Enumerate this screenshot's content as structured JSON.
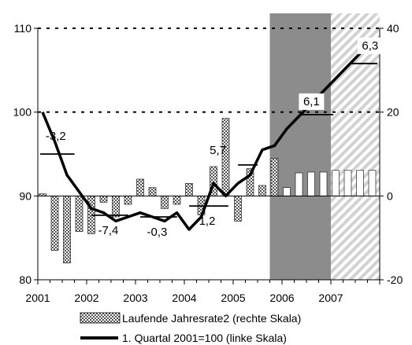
{
  "chart_data": {
    "type": "bar+line",
    "left_axis": {
      "ylim": [
        80,
        110
      ],
      "ticks": [
        "80",
        "90",
        "100",
        "110"
      ]
    },
    "right_axis": {
      "ylim": [
        -20,
        40
      ],
      "ticks": [
        "-20",
        "0",
        "20",
        "40"
      ]
    },
    "x_axis": {
      "xlim": [
        2001.0,
        2008.0
      ],
      "ticks": [
        "2001",
        "2002",
        "2003",
        "2004",
        "2005",
        "2006",
        "2007"
      ]
    },
    "grid": "dashed horizontal at 100 and 110",
    "shaded_regions": [
      {
        "from": 2005.75,
        "to": 2007.0,
        "style": "solid",
        "color": "#8c8c8c"
      },
      {
        "from": 2007.0,
        "to": 2008.0,
        "style": "hatched",
        "color": "#bdbdbd"
      }
    ],
    "bars": {
      "name": "Laufende Jahresrate2 (rechte Skala)",
      "axis": "right",
      "x": [
        2001.0,
        2001.25,
        2001.5,
        2001.75,
        2002.0,
        2002.25,
        2002.5,
        2002.75,
        2003.0,
        2003.25,
        2003.5,
        2003.75,
        2004.0,
        2004.25,
        2004.5,
        2004.75,
        2005.0,
        2005.25,
        2005.5,
        2005.75,
        2006.0,
        2006.25,
        2006.5,
        2006.75,
        2007.0,
        2007.25,
        2007.5,
        2007.75
      ],
      "values": [
        0.5,
        -13,
        -16,
        -8.5,
        -9,
        -1.5,
        -5,
        -2,
        4,
        2,
        -3,
        -2,
        3,
        -4.5,
        7,
        18.5,
        -6,
        6.5,
        2.5,
        9,
        2,
        5.5,
        5.7,
        5.7,
        6.1,
        6.1,
        6.1,
        6.1
      ],
      "forecast_from_index": 20
    },
    "line": {
      "name": "1. Quartal 2001=100 (linke Skala)",
      "axis": "left",
      "x": [
        2001.0,
        2001.25,
        2001.5,
        2001.75,
        2002.0,
        2002.25,
        2002.5,
        2002.75,
        2003.0,
        2003.25,
        2003.5,
        2003.75,
        2004.0,
        2004.25,
        2004.5,
        2004.75,
        2005.0,
        2005.25,
        2005.5,
        2005.75,
        2006.0,
        2006.25,
        2006.5,
        2006.75,
        2007.0,
        2007.25,
        2007.5,
        2007.75
      ],
      "values": [
        100,
        96.5,
        92.5,
        90.5,
        88.5,
        88,
        87,
        87.5,
        88,
        87.5,
        87,
        88,
        86,
        87.5,
        91.5,
        90,
        91.5,
        92.5,
        95.5,
        96,
        98,
        99.5,
        101,
        102.5,
        104,
        105.5,
        107,
        108.5
      ]
    },
    "annual_averages": [
      {
        "year": 2001,
        "x_from": 2001.0,
        "x_to": 2001.8,
        "value": 95,
        "label": "-3,2"
      },
      {
        "year": 2002,
        "x_from": 2002.05,
        "x_to": 2002.9,
        "value": 87.7,
        "label": "-7,4"
      },
      {
        "year": 2003,
        "x_from": 2003.05,
        "x_to": 2003.9,
        "value": 87.5,
        "label": "-0,3"
      },
      {
        "year": 2004,
        "x_from": 2004.05,
        "x_to": 2004.95,
        "value": 88.8,
        "label": "1,2"
      },
      {
        "year": 2005,
        "x_from": 2005.05,
        "x_to": 2005.55,
        "value": 93.7,
        "label": "5,7"
      },
      {
        "year": 2006,
        "x_from": 2006.3,
        "x_to": 2007.1,
        "value": 99.7,
        "label": "6,1"
      },
      {
        "year": 2007,
        "x_from": 2007.35,
        "x_to": 2008.0,
        "value": 105.8,
        "label": "6,3"
      }
    ],
    "legend": [
      {
        "key": "bars",
        "label": "Laufende Jahresrate2 (rechte Skala)"
      },
      {
        "key": "line",
        "label": "1. Quartal 2001=100 (linke Skala)"
      }
    ]
  }
}
